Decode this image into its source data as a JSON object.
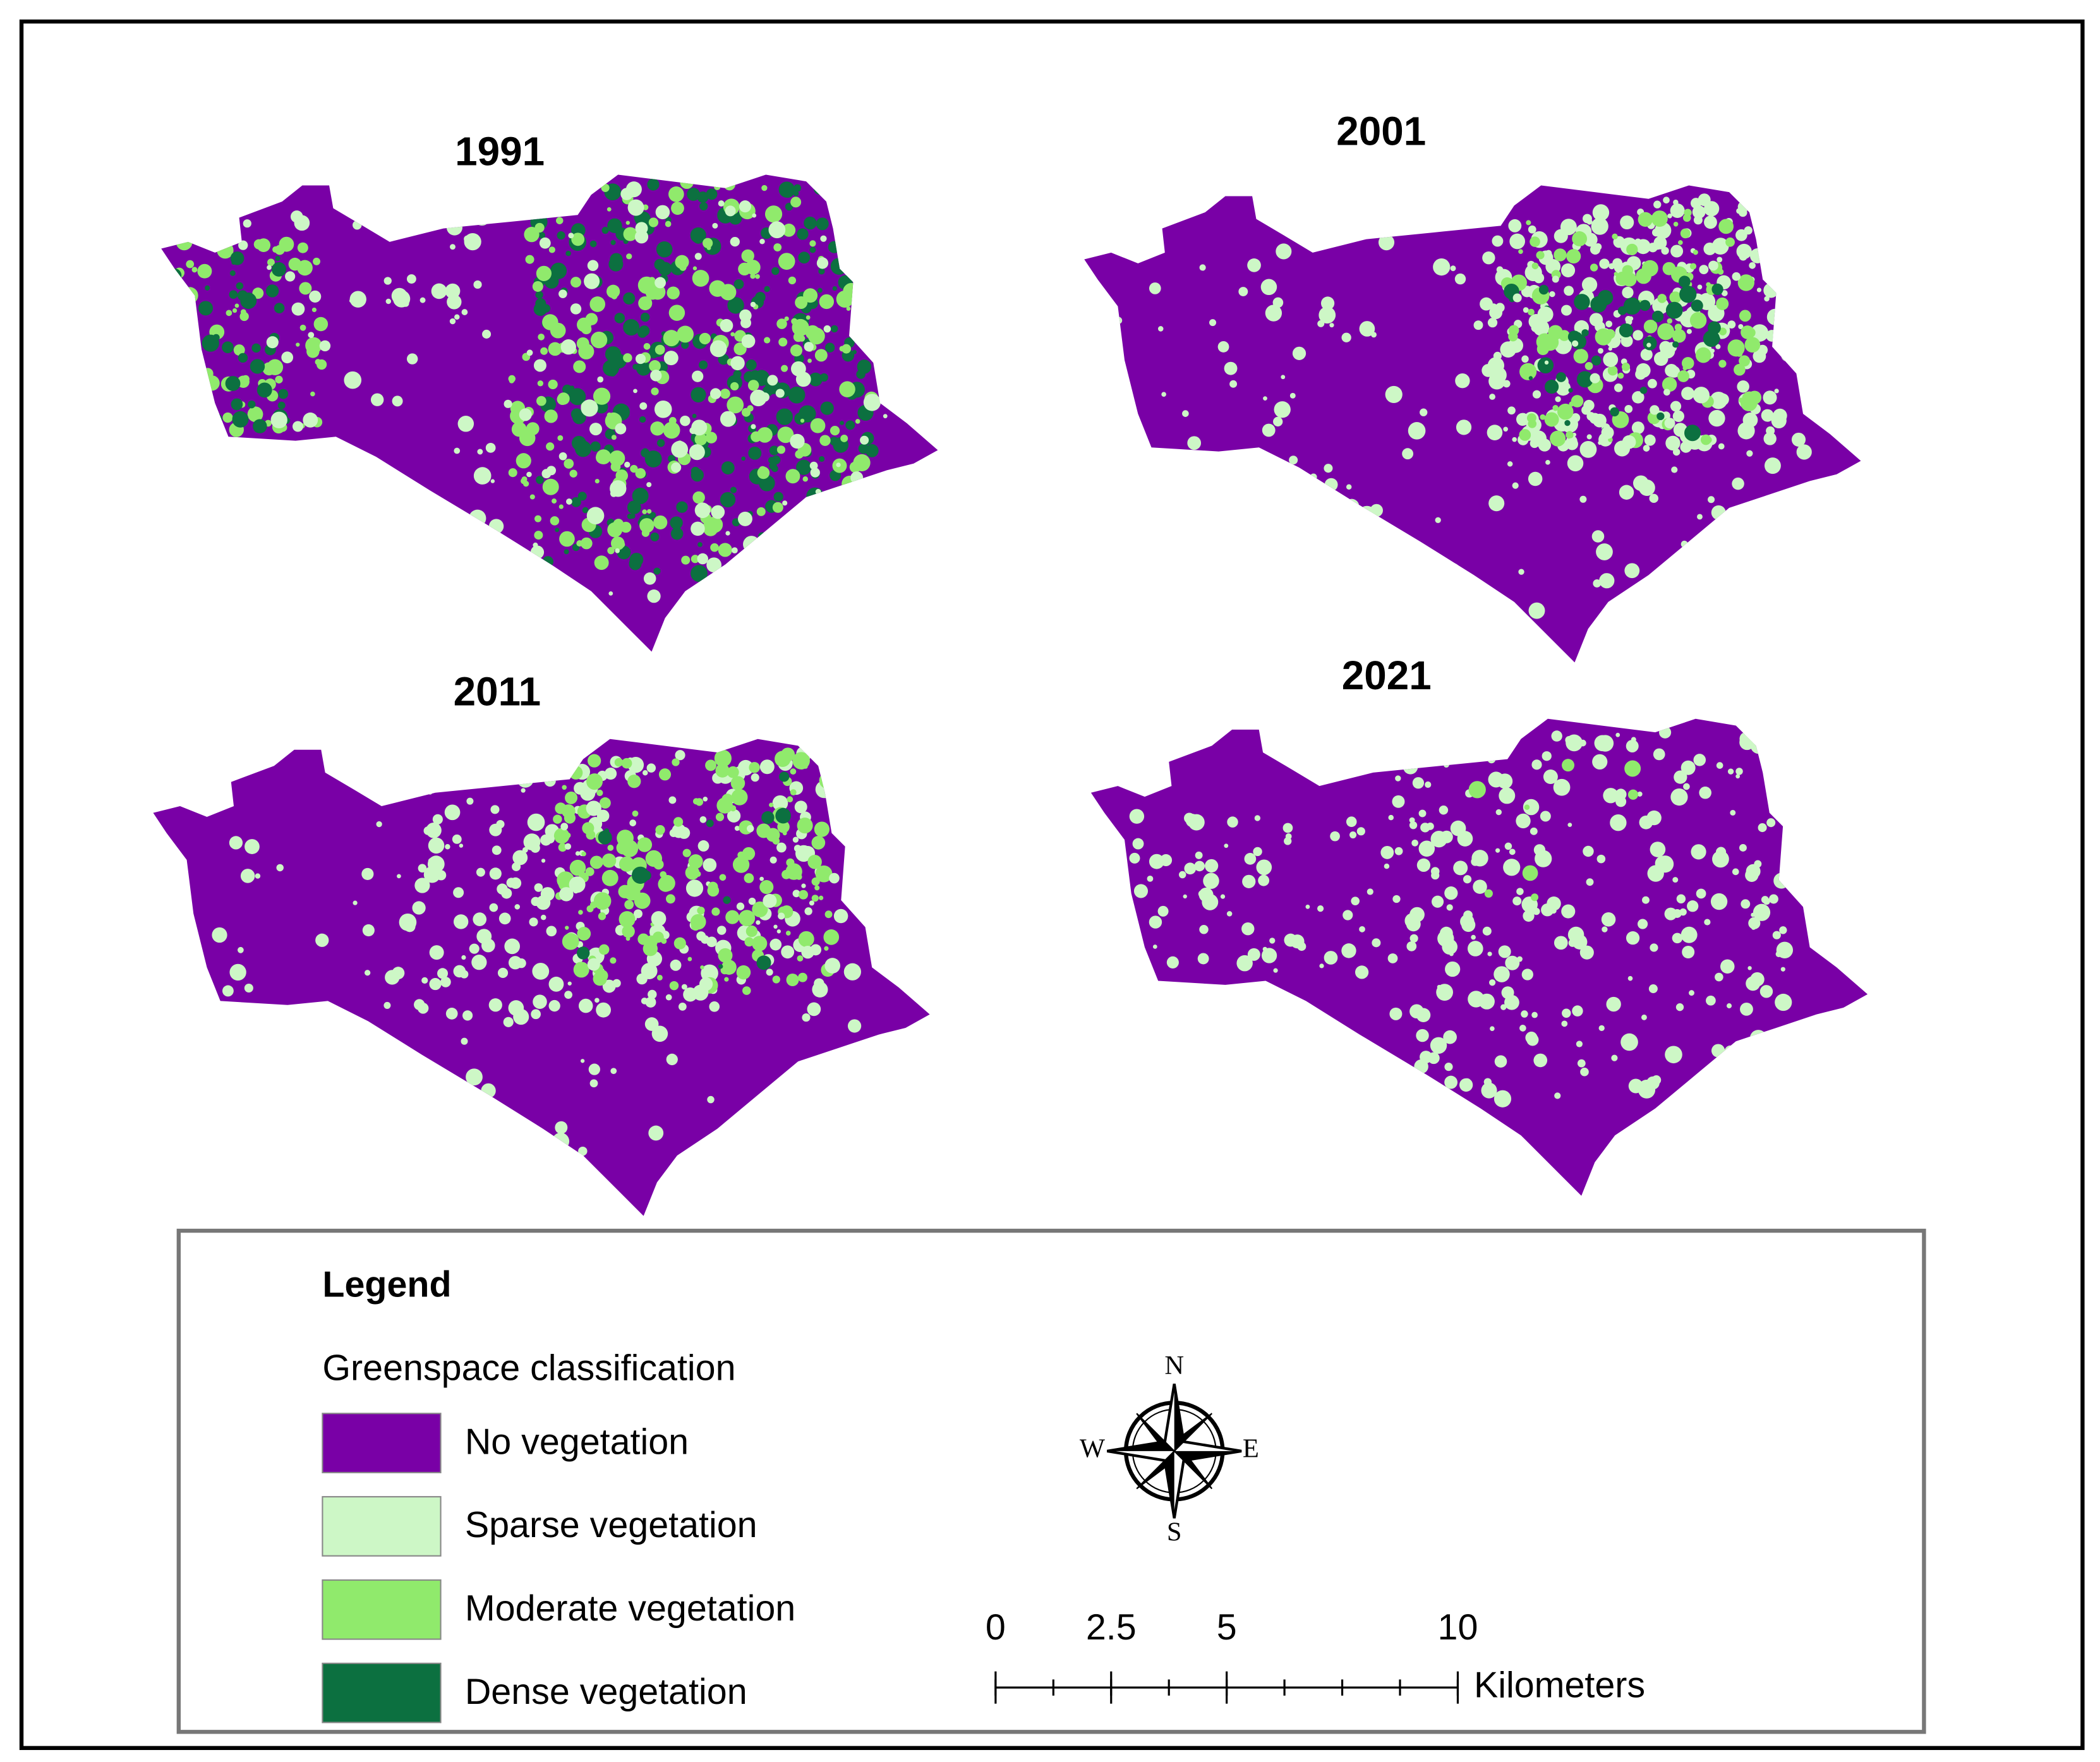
{
  "panels": [
    {
      "title": "1991"
    },
    {
      "title": "2001"
    },
    {
      "title": "2011"
    },
    {
      "title": "2021"
    }
  ],
  "legend": {
    "title": "Legend",
    "subtitle": "Greenspace classification",
    "classes": [
      {
        "label": "No vegetation",
        "color": "#7900a6"
      },
      {
        "label": "Sparse vegetation",
        "color": "#cdf7c6"
      },
      {
        "label": "Moderate vegetation",
        "color": "#90ea6c"
      },
      {
        "label": "Dense vegetation",
        "color": "#0c7040"
      }
    ]
  },
  "compass": {
    "n": "N",
    "e": "E",
    "s": "S",
    "w": "W"
  },
  "scale_bar": {
    "ticks": [
      0,
      2.5,
      5,
      10
    ],
    "unit": "Kilometers"
  }
}
